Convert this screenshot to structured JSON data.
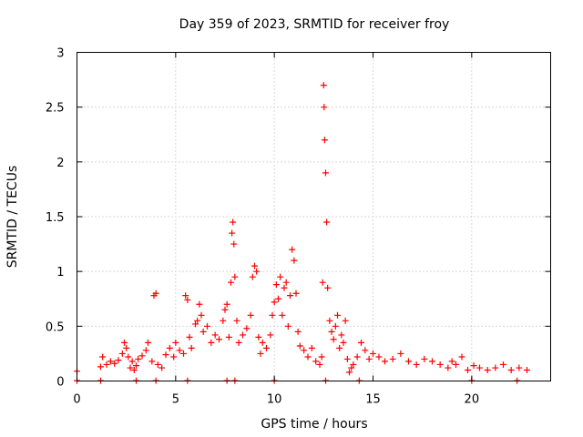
{
  "chart_data": {
    "type": "scatter",
    "title": "Day 359 of 2023, SRMTID for receiver froy",
    "xlabel": "GPS time / hours",
    "ylabel": "SRMTID / TECUs",
    "xlim": [
      0,
      24
    ],
    "ylim": [
      0,
      3
    ],
    "x_ticks": [
      0,
      5,
      10,
      15,
      20
    ],
    "x_tick_labels": [
      "0",
      "5",
      "10",
      "15",
      "20"
    ],
    "y_ticks": [
      0,
      0.5,
      1,
      1.5,
      2,
      2.5,
      3
    ],
    "y_tick_labels": [
      "0",
      "0.5",
      "1",
      "1.5",
      "2",
      "2.5",
      "3"
    ],
    "grid": true,
    "marker": "+",
    "color": "#ff0000",
    "series": [
      {
        "name": "SRMTID",
        "x": [
          0.0,
          1.2,
          1.3,
          1.5,
          1.7,
          1.9,
          2.1,
          2.3,
          2.4,
          2.5,
          2.6,
          2.7,
          2.8,
          2.9,
          3.0,
          3.1,
          3.3,
          3.5,
          3.6,
          3.8,
          3.9,
          4.0,
          4.1,
          4.3,
          4.5,
          4.7,
          4.9,
          5.0,
          5.2,
          5.4,
          5.5,
          5.6,
          5.7,
          5.8,
          6.0,
          6.1,
          6.2,
          6.3,
          6.4,
          6.6,
          6.8,
          7.0,
          7.2,
          7.4,
          7.5,
          7.6,
          7.7,
          7.8,
          7.85,
          7.9,
          7.95,
          8.0,
          8.1,
          8.2,
          8.4,
          8.6,
          8.8,
          8.9,
          9.0,
          9.1,
          9.2,
          9.3,
          9.4,
          9.6,
          9.8,
          9.9,
          10.0,
          10.1,
          10.2,
          10.3,
          10.4,
          10.5,
          10.6,
          10.7,
          10.8,
          10.9,
          11.0,
          11.1,
          11.2,
          11.3,
          11.5,
          11.7,
          11.9,
          12.1,
          12.3,
          12.4,
          12.45,
          12.5,
          12.52,
          12.55,
          12.6,
          12.65,
          12.7,
          12.8,
          12.9,
          13.0,
          13.1,
          13.2,
          13.3,
          13.4,
          13.5,
          13.6,
          13.7,
          13.8,
          13.9,
          14.0,
          14.2,
          14.4,
          14.6,
          14.8,
          15.0,
          15.3,
          15.6,
          16.0,
          16.4,
          16.8,
          17.2,
          17.6,
          18.0,
          18.4,
          18.8,
          19.0,
          19.2,
          19.5,
          19.8,
          20.1,
          20.4,
          20.8,
          21.2,
          21.6,
          22.0,
          22.4,
          22.8,
          0.0,
          1.2,
          3.0,
          4.0,
          5.6,
          7.6,
          8.0,
          10.0,
          12.6,
          14.3,
          20.0,
          22.3
        ],
        "y": [
          0.09,
          0.13,
          0.22,
          0.15,
          0.18,
          0.16,
          0.19,
          0.25,
          0.35,
          0.3,
          0.22,
          0.12,
          0.18,
          0.1,
          0.14,
          0.2,
          0.23,
          0.28,
          0.35,
          0.18,
          0.78,
          0.8,
          0.15,
          0.12,
          0.24,
          0.3,
          0.22,
          0.35,
          0.28,
          0.25,
          0.78,
          0.74,
          0.4,
          0.3,
          0.52,
          0.55,
          0.7,
          0.6,
          0.45,
          0.5,
          0.35,
          0.42,
          0.38,
          0.55,
          0.65,
          0.7,
          0.4,
          0.9,
          1.35,
          1.45,
          1.25,
          0.95,
          0.55,
          0.35,
          0.42,
          0.48,
          0.6,
          0.95,
          1.05,
          1.0,
          0.4,
          0.25,
          0.35,
          0.3,
          0.42,
          0.6,
          0.72,
          0.88,
          0.75,
          0.95,
          0.6,
          0.85,
          0.9,
          0.5,
          0.78,
          1.2,
          1.1,
          0.8,
          0.45,
          0.32,
          0.28,
          0.22,
          0.3,
          0.18,
          0.15,
          0.22,
          0.9,
          2.7,
          2.5,
          2.2,
          1.9,
          1.45,
          0.85,
          0.55,
          0.45,
          0.38,
          0.5,
          0.6,
          0.3,
          0.42,
          0.35,
          0.55,
          0.2,
          0.08,
          0.12,
          0.15,
          0.22,
          0.35,
          0.28,
          0.2,
          0.25,
          0.22,
          0.18,
          0.2,
          0.25,
          0.18,
          0.15,
          0.2,
          0.18,
          0.15,
          0.12,
          0.18,
          0.15,
          0.22,
          0.1,
          0.14,
          0.12,
          0.1,
          0.12,
          0.15,
          0.1,
          0.12,
          0.1,
          0.003,
          0.003,
          0.003,
          0.003,
          0.003,
          0.003,
          0.003,
          0.003,
          0.003,
          0.003,
          0.003,
          0.003
        ]
      }
    ]
  }
}
